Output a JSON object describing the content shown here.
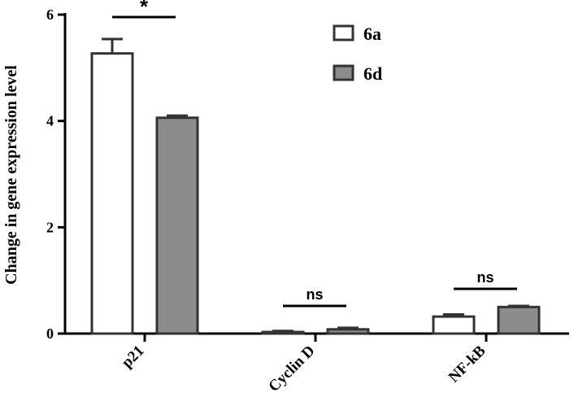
{
  "chart_data": {
    "type": "bar",
    "title": "",
    "xlabel": "",
    "ylabel": "Change in gene expression level",
    "ylim": [
      0,
      6
    ],
    "yticks": [
      0,
      2,
      4,
      6
    ],
    "grid": false,
    "legend_position": "top-right",
    "categories": [
      "p21",
      "Cyclin D",
      "NF-kB"
    ],
    "series": [
      {
        "name": "6a",
        "values": [
          5.27,
          0.03,
          0.32
        ],
        "errors": [
          0.27,
          0.02,
          0.04
        ],
        "color": "#ffffff"
      },
      {
        "name": "6d",
        "values": [
          4.06,
          0.08,
          0.5
        ],
        "errors": [
          0.04,
          0.03,
          0.02
        ],
        "color": "#8c8c8c"
      }
    ],
    "annotations": [
      {
        "category": "p21",
        "text": "*"
      },
      {
        "category": "Cyclin D",
        "text": "ns"
      },
      {
        "category": "NF-kB",
        "text": "ns"
      }
    ]
  }
}
